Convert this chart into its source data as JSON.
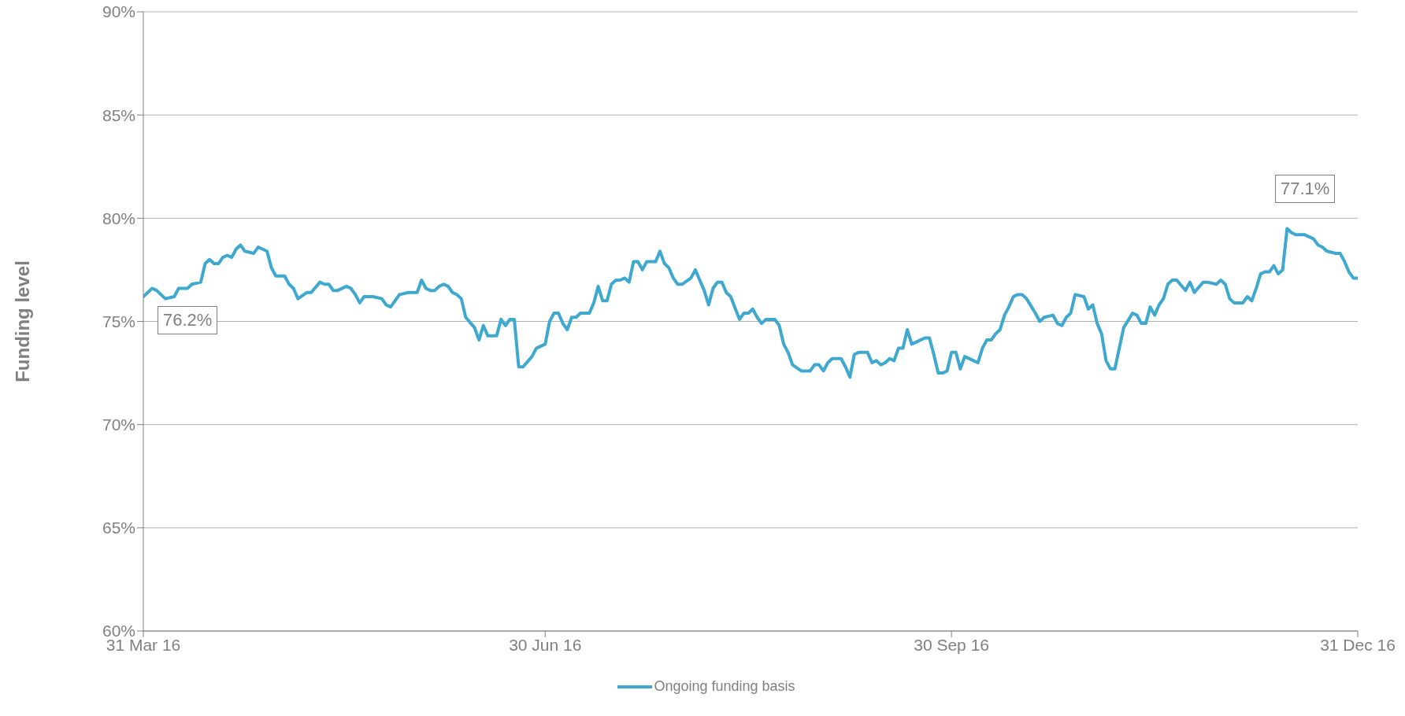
{
  "chart_data": {
    "type": "line",
    "ylabel": "Funding level",
    "x": [
      "2016-03-31",
      "2016-04-02",
      "2016-04-03",
      "2016-04-05",
      "2016-04-07",
      "2016-04-08",
      "2016-04-10",
      "2016-04-11",
      "2016-04-13",
      "2016-04-14",
      "2016-04-15",
      "2016-04-16",
      "2016-04-17",
      "2016-04-18",
      "2016-04-19",
      "2016-04-20",
      "2016-04-21",
      "2016-04-22",
      "2016-04-23",
      "2016-04-25",
      "2016-04-26",
      "2016-04-28",
      "2016-04-29",
      "2016-04-30",
      "2016-05-02",
      "2016-05-03",
      "2016-05-04",
      "2016-05-05",
      "2016-05-07",
      "2016-05-08",
      "2016-05-10",
      "2016-05-11",
      "2016-05-12",
      "2016-05-13",
      "2016-05-14",
      "2016-05-16",
      "2016-05-17",
      "2016-05-18",
      "2016-05-19",
      "2016-05-20",
      "2016-05-22",
      "2016-05-24",
      "2016-05-25",
      "2016-05-26",
      "2016-05-28",
      "2016-05-30",
      "2016-05-31",
      "2016-06-01",
      "2016-06-02",
      "2016-06-03",
      "2016-06-04",
      "2016-06-05",
      "2016-06-06",
      "2016-06-07",
      "2016-06-08",
      "2016-06-09",
      "2016-06-10",
      "2016-06-11",
      "2016-06-12",
      "2016-06-14",
      "2016-06-15",
      "2016-06-16",
      "2016-06-17",
      "2016-06-19",
      "2016-06-20",
      "2016-06-21",
      "2016-06-22",
      "2016-06-23",
      "2016-06-24",
      "2016-06-25",
      "2016-06-27",
      "2016-06-28",
      "2016-06-30",
      "2016-07-01",
      "2016-07-02",
      "2016-07-03",
      "2016-07-04",
      "2016-07-05",
      "2016-07-06",
      "2016-07-07",
      "2016-07-08",
      "2016-07-10",
      "2016-07-11",
      "2016-07-12",
      "2016-07-13",
      "2016-07-14",
      "2016-07-15",
      "2016-07-16",
      "2016-07-17",
      "2016-07-18",
      "2016-07-19",
      "2016-07-20",
      "2016-07-21",
      "2016-07-22",
      "2016-07-23",
      "2016-07-25",
      "2016-07-26",
      "2016-07-27",
      "2016-07-28",
      "2016-07-29",
      "2016-07-30",
      "2016-07-31",
      "2016-08-02",
      "2016-08-03",
      "2016-08-05",
      "2016-08-06",
      "2016-08-07",
      "2016-08-08",
      "2016-08-09",
      "2016-08-10",
      "2016-08-11",
      "2016-08-13",
      "2016-08-14",
      "2016-08-15",
      "2016-08-16",
      "2016-08-17",
      "2016-08-18",
      "2016-08-19",
      "2016-08-21",
      "2016-08-22",
      "2016-08-23",
      "2016-08-24",
      "2016-08-25",
      "2016-08-27",
      "2016-08-29",
      "2016-08-30",
      "2016-08-31",
      "2016-09-01",
      "2016-09-02",
      "2016-09-03",
      "2016-09-05",
      "2016-09-06",
      "2016-09-07",
      "2016-09-08",
      "2016-09-09",
      "2016-09-11",
      "2016-09-12",
      "2016-09-13",
      "2016-09-14",
      "2016-09-15",
      "2016-09-16",
      "2016-09-17",
      "2016-09-18",
      "2016-09-19",
      "2016-09-20",
      "2016-09-21",
      "2016-09-23",
      "2016-09-24",
      "2016-09-25",
      "2016-09-26",
      "2016-09-27",
      "2016-09-28",
      "2016-09-29",
      "2016-09-30",
      "2016-10-01",
      "2016-10-02",
      "2016-10-03",
      "2016-10-05",
      "2016-10-06",
      "2016-10-07",
      "2016-10-08",
      "2016-10-09",
      "2016-10-10",
      "2016-10-11",
      "2016-10-12",
      "2016-10-13",
      "2016-10-14",
      "2016-10-15",
      "2016-10-16",
      "2016-10-17",
      "2016-10-19",
      "2016-10-20",
      "2016-10-21",
      "2016-10-23",
      "2016-10-24",
      "2016-10-25",
      "2016-10-26",
      "2016-10-27",
      "2016-10-28",
      "2016-10-30",
      "2016-10-31",
      "2016-11-01",
      "2016-11-02",
      "2016-11-03",
      "2016-11-04",
      "2016-11-05",
      "2016-11-06",
      "2016-11-07",
      "2016-11-08",
      "2016-11-10",
      "2016-11-11",
      "2016-11-12",
      "2016-11-13",
      "2016-11-14",
      "2016-11-15",
      "2016-11-16",
      "2016-11-17",
      "2016-11-18",
      "2016-11-19",
      "2016-11-20",
      "2016-11-22",
      "2016-11-23",
      "2016-11-24",
      "2016-11-26",
      "2016-11-27",
      "2016-11-29",
      "2016-11-30",
      "2016-12-01",
      "2016-12-02",
      "2016-12-03",
      "2016-12-05",
      "2016-12-06",
      "2016-12-07",
      "2016-12-08",
      "2016-12-09",
      "2016-12-10",
      "2016-12-11",
      "2016-12-12",
      "2016-12-13",
      "2016-12-14",
      "2016-12-15",
      "2016-12-16",
      "2016-12-17",
      "2016-12-19",
      "2016-12-21",
      "2016-12-22",
      "2016-12-23",
      "2016-12-24",
      "2016-12-26",
      "2016-12-27",
      "2016-12-28",
      "2016-12-29",
      "2016-12-30",
      "2016-12-31"
    ],
    "series": [
      {
        "name": "Ongoing funding basis",
        "color": "#3ea8cf",
        "values": [
          76.2,
          76.6,
          76.5,
          76.1,
          76.2,
          76.6,
          76.6,
          76.8,
          76.9,
          77.8,
          78.0,
          77.8,
          77.8,
          78.1,
          78.2,
          78.1,
          78.5,
          78.7,
          78.4,
          78.3,
          78.6,
          78.4,
          77.6,
          77.2,
          77.2,
          76.8,
          76.6,
          76.1,
          76.4,
          76.4,
          76.9,
          76.8,
          76.8,
          76.5,
          76.5,
          76.7,
          76.6,
          76.3,
          75.9,
          76.2,
          76.2,
          76.1,
          75.8,
          75.7,
          76.3,
          76.4,
          76.4,
          76.4,
          77.0,
          76.6,
          76.5,
          76.5,
          76.7,
          76.8,
          76.7,
          76.4,
          76.3,
          76.1,
          75.2,
          74.7,
          74.1,
          74.8,
          74.3,
          74.3,
          75.1,
          74.8,
          75.1,
          75.1,
          72.8,
          72.8,
          73.3,
          73.7,
          73.9,
          75.0,
          75.4,
          75.4,
          74.9,
          74.6,
          75.2,
          75.2,
          75.4,
          75.4,
          75.9,
          76.7,
          76.0,
          76.0,
          76.8,
          77.0,
          77.0,
          77.1,
          76.9,
          77.9,
          77.9,
          77.5,
          77.9,
          77.9,
          78.4,
          77.8,
          77.6,
          77.1,
          76.8,
          76.8,
          77.1,
          77.5,
          76.5,
          75.8,
          76.6,
          76.9,
          76.9,
          76.4,
          76.2,
          75.1,
          75.4,
          75.4,
          75.6,
          75.2,
          74.9,
          75.1,
          75.1,
          74.8,
          73.9,
          73.5,
          72.9,
          72.6,
          72.6,
          72.9,
          72.9,
          72.6,
          73.0,
          73.2,
          73.2,
          72.8,
          72.3,
          73.4,
          73.5,
          73.5,
          73.0,
          73.1,
          72.9,
          73.0,
          73.2,
          73.1,
          73.7,
          73.7,
          74.6,
          73.9,
          74.1,
          74.2,
          74.2,
          73.4,
          72.5,
          72.5,
          72.6,
          73.5,
          73.5,
          72.7,
          73.3,
          73.1,
          73.0,
          73.7,
          74.1,
          74.1,
          74.4,
          74.6,
          75.3,
          75.7,
          76.2,
          76.3,
          76.3,
          76.1,
          75.4,
          75.0,
          75.2,
          75.3,
          74.9,
          74.8,
          75.2,
          75.4,
          76.3,
          76.2,
          75.6,
          75.8,
          74.9,
          74.4,
          73.1,
          72.7,
          72.7,
          73.7,
          74.7,
          75.4,
          75.3,
          74.9,
          74.9,
          75.7,
          75.3,
          75.8,
          76.1,
          76.8,
          77.0,
          77.0,
          76.5,
          76.9,
          76.4,
          76.9,
          76.9,
          76.8,
          77.0,
          76.8,
          76.1,
          75.9,
          75.9,
          76.2,
          76.0,
          76.6,
          77.3,
          77.4,
          77.4,
          77.7,
          77.3,
          77.5,
          79.5,
          79.3,
          79.2,
          79.2,
          79.0,
          78.7,
          78.6,
          78.4,
          78.3,
          78.3,
          77.9,
          77.4,
          77.1,
          77.1
        ]
      }
    ],
    "xlim": [
      "2016-03-31",
      "2016-12-31"
    ],
    "xticks": [
      {
        "value": "2016-03-31",
        "label": "31 Mar 16"
      },
      {
        "value": "2016-06-30",
        "label": "30 Jun 16"
      },
      {
        "value": "2016-09-30",
        "label": "30 Sep 16"
      },
      {
        "value": "2016-12-31",
        "label": "31 Dec 16"
      }
    ],
    "ylim": [
      60,
      90
    ],
    "yticks": [
      {
        "value": 60,
        "label": "60%"
      },
      {
        "value": 65,
        "label": "65%"
      },
      {
        "value": 70,
        "label": "70%"
      },
      {
        "value": 75,
        "label": "75%"
      },
      {
        "value": 80,
        "label": "80%"
      },
      {
        "value": 85,
        "label": "85%"
      },
      {
        "value": 90,
        "label": "90%"
      }
    ],
    "annotations": [
      "76.2%",
      "77.1%"
    ],
    "grid": "y",
    "legend": "bottom",
    "marker": "none",
    "line_style": "solid"
  }
}
